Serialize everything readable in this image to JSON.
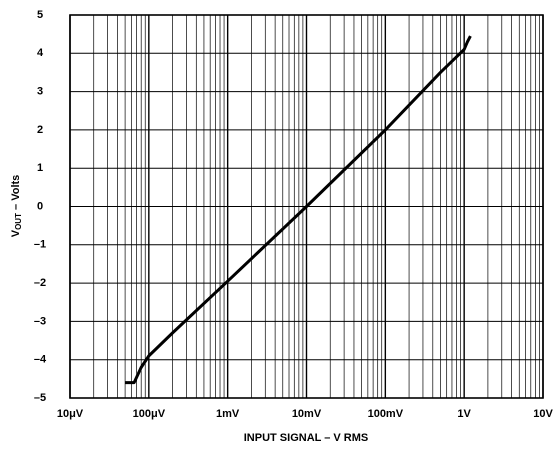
{
  "chart_data": {
    "type": "line",
    "log_x": true,
    "grid": true,
    "minor_grid": true,
    "xlabel": "INPUT SIGNAL – V RMS",
    "ylabel": "V",
    "ylabel_sub": "OUT",
    "ylabel_rest": " – Volts",
    "xlim": [
      1e-05,
      10
    ],
    "ylim": [
      -5,
      5
    ],
    "xticks": [
      {
        "value": 1e-05,
        "label": "10μV"
      },
      {
        "value": 0.0001,
        "label": "100μV"
      },
      {
        "value": 0.001,
        "label": "1mV"
      },
      {
        "value": 0.01,
        "label": "10mV"
      },
      {
        "value": 0.1,
        "label": "100mV"
      },
      {
        "value": 1,
        "label": "1V"
      },
      {
        "value": 10,
        "label": "10V"
      }
    ],
    "yticks": [
      {
        "value": -5,
        "label": "–5"
      },
      {
        "value": -4,
        "label": "–4"
      },
      {
        "value": -3,
        "label": "–3"
      },
      {
        "value": -2,
        "label": "–2"
      },
      {
        "value": -1,
        "label": "–1"
      },
      0,
      1,
      2,
      3,
      4,
      5
    ],
    "series": [
      {
        "color": "#000000",
        "x": [
          5e-05,
          6.5e-05,
          8e-05,
          0.0001,
          0.0002,
          0.001,
          0.01,
          0.1,
          0.5,
          1,
          1.1,
          1.2
        ],
        "values": [
          -4.6,
          -4.6,
          -4.2,
          -3.9,
          -3.3,
          -1.95,
          0,
          2,
          3.5,
          4.1,
          4.3,
          4.45
        ]
      }
    ]
  }
}
